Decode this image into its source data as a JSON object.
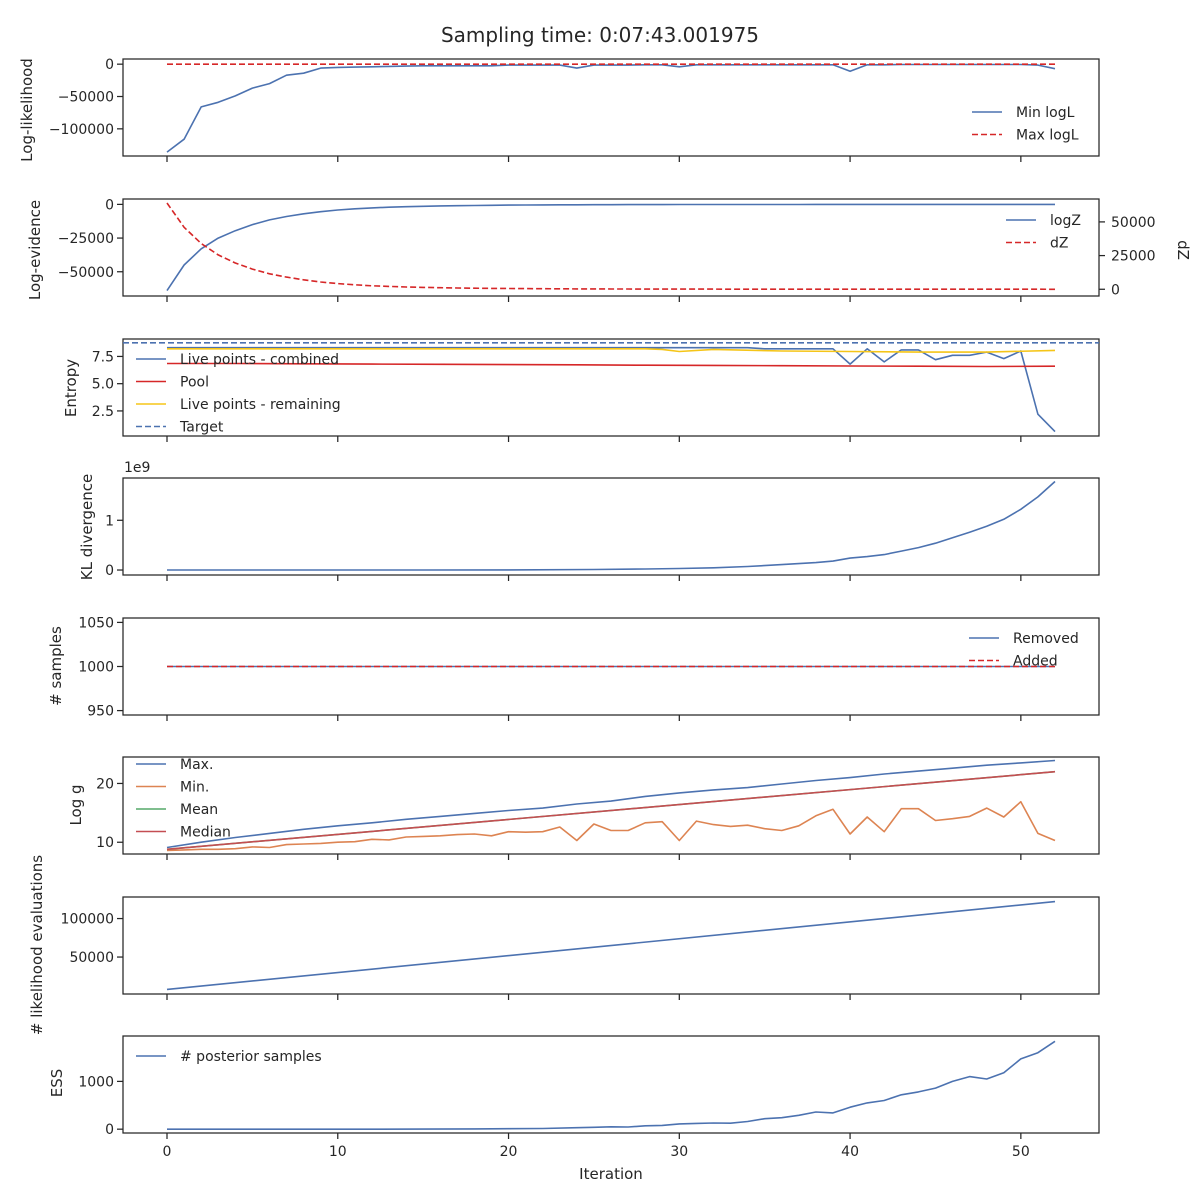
{
  "title": "Sampling time: 0:07:43.001975",
  "xlabel": "Iteration",
  "x_ticks": [
    "0",
    "10",
    "20",
    "30",
    "40",
    "50"
  ],
  "colors": {
    "blue": "#4c72b0",
    "orange": "#dd8452",
    "green": "#55a868",
    "red": "#c44e52",
    "dred": "#d62728",
    "yellow": "#f5c518"
  },
  "chart_data": [
    {
      "type": "line",
      "ylabel": "Log-likelihood",
      "ylim": [
        -142000,
        8000
      ],
      "yticks": [
        0,
        -50000,
        -100000
      ],
      "ytick_labels": [
        "0",
        "−50000",
        "−100000"
      ],
      "legend_position": "right",
      "series": [
        {
          "name": "Min logL",
          "style": "solid",
          "color": "blue",
          "x": [
            0,
            1,
            2,
            3,
            4,
            5,
            6,
            7,
            8,
            9,
            10,
            11,
            12,
            13,
            14,
            15,
            16,
            17,
            18,
            19,
            20,
            21,
            22,
            23,
            24,
            25,
            26,
            27,
            28,
            29,
            30,
            31,
            32,
            33,
            34,
            35,
            36,
            37,
            38,
            39,
            40,
            41,
            42,
            43,
            44,
            45,
            46,
            47,
            48,
            49,
            50,
            51,
            52
          ],
          "values": [
            -136000,
            -116000,
            -66000,
            -59000,
            -49000,
            -37000,
            -30000,
            -17000,
            -14000,
            -6000,
            -5000,
            -4500,
            -4000,
            -3500,
            -3000,
            -2500,
            -2500,
            -2500,
            -2500,
            -2500,
            -1500,
            -1500,
            -1500,
            -1500,
            -6000,
            -1500,
            -1500,
            -1500,
            -1000,
            -1000,
            -4000,
            -1000,
            -1000,
            -1000,
            -1000,
            -1000,
            -1000,
            -1000,
            -1000,
            -1000,
            -11000,
            -1000,
            -1000,
            -500,
            -500,
            -500,
            -500,
            -500,
            -500,
            -500,
            -500,
            -1500,
            -7000
          ]
        },
        {
          "name": "Max logL",
          "style": "dashed",
          "color": "dred",
          "x": [
            0,
            52
          ],
          "values": [
            0,
            0
          ]
        }
      ]
    },
    {
      "type": "line",
      "ylabel": "Log-evidence",
      "ylim": [
        -68000,
        4000
      ],
      "yticks": [
        0,
        -25000,
        -50000
      ],
      "ytick_labels": [
        "0",
        "−25000",
        "−50000"
      ],
      "secondary_axis": {
        "ylabel": "dZ",
        "ylim": [
          -5000,
          67000
        ],
        "yticks": [
          0,
          25000,
          50000
        ],
        "ytick_labels": [
          "0",
          "25000",
          "50000"
        ]
      },
      "legend_position": "right",
      "series": [
        {
          "name": "logZ",
          "style": "solid",
          "color": "blue",
          "x": [
            0,
            1,
            2,
            3,
            4,
            5,
            6,
            7,
            8,
            9,
            10,
            11,
            12,
            13,
            14,
            15,
            16,
            17,
            18,
            19,
            20,
            21,
            22,
            23,
            24,
            25,
            26,
            27,
            28,
            29,
            30,
            31,
            32,
            33,
            34,
            35,
            36,
            37,
            38,
            39,
            40,
            41,
            42,
            43,
            44,
            45,
            46,
            47,
            48,
            49,
            50,
            51,
            52
          ],
          "values": [
            -64000,
            -45000,
            -33000,
            -25000,
            -19500,
            -15000,
            -11500,
            -9000,
            -7000,
            -5400,
            -4200,
            -3300,
            -2600,
            -2100,
            -1700,
            -1400,
            -1150,
            -950,
            -800,
            -660,
            -550,
            -460,
            -390,
            -330,
            -280,
            -240,
            -200,
            -170,
            -150,
            -130,
            -110,
            -100,
            -90,
            -80,
            -70,
            -60,
            -55,
            -50,
            -45,
            -40,
            -35,
            -30,
            -28,
            -25,
            -22,
            -20,
            -18,
            -16,
            -15,
            -14,
            -13,
            -12,
            -10
          ]
        },
        {
          "name": "dZ",
          "style": "dashed",
          "color": "dred",
          "axis": "secondary",
          "x": [
            0,
            1,
            2,
            3,
            4,
            5,
            6,
            7,
            8,
            9,
            10,
            11,
            12,
            13,
            14,
            15,
            16,
            17,
            18,
            19,
            20,
            21,
            22,
            23,
            24,
            25,
            26,
            27,
            28,
            29,
            30,
            31,
            32,
            33,
            34,
            35,
            36,
            37,
            38,
            39,
            40,
            41,
            42,
            43,
            44,
            45,
            46,
            47,
            48,
            49,
            50,
            51,
            52
          ],
          "values": [
            64000,
            46000,
            34000,
            25500,
            19500,
            15000,
            11500,
            9000,
            7000,
            5400,
            4200,
            3300,
            2600,
            2100,
            1700,
            1400,
            1150,
            950,
            800,
            660,
            550,
            460,
            390,
            330,
            280,
            240,
            200,
            170,
            150,
            130,
            110,
            100,
            90,
            80,
            70,
            60,
            55,
            50,
            45,
            40,
            35,
            30,
            28,
            25,
            22,
            20,
            18,
            16,
            15,
            14,
            13,
            12,
            10
          ]
        }
      ]
    },
    {
      "type": "line",
      "ylabel": "Entropy",
      "ylim": [
        0.2,
        9.1
      ],
      "yticks": [
        2.5,
        5.0,
        7.5
      ],
      "ytick_labels": [
        "2.5",
        "5.0",
        "7.5"
      ],
      "legend_position": "upper-left",
      "series": [
        {
          "name": "Live points - combined",
          "style": "solid",
          "color": "blue",
          "x": [
            0,
            1,
            2,
            3,
            4,
            5,
            6,
            7,
            8,
            9,
            10,
            11,
            12,
            13,
            14,
            15,
            16,
            17,
            18,
            19,
            20,
            21,
            22,
            23,
            24,
            25,
            26,
            27,
            28,
            29,
            30,
            31,
            32,
            33,
            34,
            35,
            36,
            37,
            38,
            39,
            40,
            41,
            42,
            43,
            44,
            45,
            46,
            47,
            48,
            49,
            50,
            51,
            52
          ],
          "values": [
            8.3,
            8.3,
            8.3,
            8.3,
            8.3,
            8.3,
            8.3,
            8.3,
            8.3,
            8.3,
            8.3,
            8.3,
            8.3,
            8.3,
            8.3,
            8.3,
            8.3,
            8.3,
            8.3,
            8.3,
            8.3,
            8.3,
            8.3,
            8.3,
            8.3,
            8.3,
            8.3,
            8.3,
            8.3,
            8.3,
            8.3,
            8.3,
            8.3,
            8.3,
            8.3,
            8.2,
            8.2,
            8.2,
            8.2,
            8.2,
            6.8,
            8.2,
            7.0,
            8.1,
            8.1,
            7.2,
            7.6,
            7.6,
            7.9,
            7.3,
            8.0,
            2.2,
            0.6
          ]
        },
        {
          "name": "Pool",
          "style": "solid",
          "color": "dred",
          "x": [
            0,
            4,
            8,
            12,
            16,
            20,
            24,
            28,
            32,
            36,
            40,
            44,
            48,
            52
          ],
          "values": [
            6.85,
            6.85,
            6.82,
            6.8,
            6.78,
            6.75,
            6.73,
            6.7,
            6.68,
            6.65,
            6.62,
            6.6,
            6.58,
            6.6
          ]
        },
        {
          "name": "Live points - remaining",
          "style": "solid",
          "color": "yellow",
          "x": [
            0,
            4,
            8,
            12,
            16,
            20,
            24,
            28,
            29,
            30,
            32,
            36,
            40,
            44,
            48,
            52
          ],
          "values": [
            8.2,
            8.2,
            8.2,
            8.2,
            8.2,
            8.2,
            8.2,
            8.2,
            8.15,
            7.95,
            8.15,
            8.0,
            7.95,
            7.9,
            7.9,
            8.05
          ]
        },
        {
          "name": "Target",
          "style": "dashed",
          "color": "blue",
          "x": [
            0,
            52
          ],
          "values": [
            8.75,
            8.75
          ]
        }
      ]
    },
    {
      "type": "line",
      "ylabel": "KL divergence",
      "offset_label": "1e9",
      "ylim": [
        -0.1,
        1.85
      ],
      "yticks": [
        0,
        1
      ],
      "ytick_labels": [
        "0",
        "1"
      ],
      "series": [
        {
          "name": "KL divergence",
          "style": "solid",
          "color": "blue",
          "x": [
            0,
            5,
            10,
            15,
            20,
            25,
            28,
            30,
            32,
            34,
            36,
            38,
            39,
            40,
            41,
            42,
            43,
            44,
            45,
            46,
            47,
            48,
            49,
            50,
            51,
            52
          ],
          "values": [
            0,
            0,
            0,
            0,
            0.002,
            0.01,
            0.02,
            0.03,
            0.045,
            0.07,
            0.11,
            0.15,
            0.18,
            0.24,
            0.27,
            0.31,
            0.38,
            0.45,
            0.54,
            0.65,
            0.76,
            0.88,
            1.02,
            1.22,
            1.47,
            1.78
          ]
        }
      ]
    },
    {
      "type": "line",
      "ylabel": "# samples",
      "ylim": [
        945,
        1055
      ],
      "yticks": [
        950,
        1000,
        1050
      ],
      "ytick_labels": [
        "950",
        "1000",
        "1050"
      ],
      "legend_position": "upper-right",
      "series": [
        {
          "name": "Removed",
          "style": "solid",
          "color": "blue",
          "x": [
            0,
            52
          ],
          "values": [
            1000,
            1000
          ]
        },
        {
          "name": "Added",
          "style": "dashed",
          "color": "dred",
          "x": [
            0,
            52
          ],
          "values": [
            1000,
            1000
          ]
        }
      ]
    },
    {
      "type": "line",
      "ylabel": "Log g",
      "ylim": [
        8,
        24.5
      ],
      "yticks": [
        10,
        20
      ],
      "ytick_labels": [
        "10",
        "20"
      ],
      "legend_position": "upper-left",
      "series": [
        {
          "name": "Max.",
          "style": "solid",
          "color": "blue",
          "x": [
            0,
            2,
            4,
            6,
            8,
            10,
            12,
            14,
            16,
            18,
            20,
            22,
            24,
            26,
            28,
            30,
            32,
            34,
            36,
            38,
            40,
            42,
            44,
            46,
            48,
            50,
            52
          ],
          "values": [
            9.1,
            10.0,
            10.8,
            11.5,
            12.2,
            12.8,
            13.3,
            13.9,
            14.4,
            14.9,
            15.4,
            15.8,
            16.5,
            17.0,
            17.8,
            18.4,
            18.9,
            19.3,
            19.9,
            20.5,
            21.0,
            21.6,
            22.1,
            22.6,
            23.1,
            23.5,
            23.9
          ]
        },
        {
          "name": "Min.",
          "style": "solid",
          "color": "orange",
          "x": [
            0,
            1,
            2,
            3,
            4,
            5,
            6,
            7,
            8,
            9,
            10,
            11,
            12,
            13,
            14,
            15,
            16,
            17,
            18,
            19,
            20,
            21,
            22,
            23,
            24,
            25,
            26,
            27,
            28,
            29,
            30,
            31,
            32,
            33,
            34,
            35,
            36,
            37,
            38,
            39,
            40,
            41,
            42,
            43,
            44,
            45,
            46,
            47,
            48,
            49,
            50,
            51,
            52
          ],
          "values": [
            8.6,
            8.7,
            8.8,
            8.8,
            8.9,
            9.2,
            9.1,
            9.6,
            9.7,
            9.8,
            10.0,
            10.1,
            10.5,
            10.4,
            10.9,
            11.0,
            11.1,
            11.3,
            11.4,
            11.1,
            11.8,
            11.7,
            11.8,
            12.6,
            10.3,
            13.1,
            12.0,
            12.0,
            13.3,
            13.5,
            10.3,
            13.6,
            13.0,
            12.7,
            12.9,
            12.3,
            12.0,
            12.8,
            14.5,
            15.6,
            11.4,
            14.3,
            11.8,
            15.7,
            15.7,
            13.7,
            14.0,
            14.4,
            15.8,
            14.3,
            16.9,
            11.5,
            10.3
          ]
        },
        {
          "name": "Mean",
          "style": "solid",
          "color": "green",
          "x": [
            0,
            52
          ],
          "values": [
            8.8,
            22.0
          ]
        },
        {
          "name": "Median",
          "style": "solid",
          "color": "red",
          "x": [
            0,
            52
          ],
          "values": [
            8.8,
            22.0
          ]
        }
      ]
    },
    {
      "type": "line",
      "ylabel": "# likelihood evaluations",
      "ylim": [
        2000,
        128000
      ],
      "yticks": [
        50000,
        100000
      ],
      "ytick_labels": [
        "50000",
        "100000"
      ],
      "series": [
        {
          "name": "# likelihood evaluations",
          "style": "solid",
          "color": "blue",
          "x": [
            0,
            52
          ],
          "values": [
            8000,
            122000
          ]
        }
      ]
    },
    {
      "type": "line",
      "ylabel": "ESS",
      "ylim": [
        -80,
        1950
      ],
      "yticks": [
        0,
        1000
      ],
      "ytick_labels": [
        "0",
        "1000"
      ],
      "legend_position": "upper-left",
      "series": [
        {
          "name": "# posterior samples",
          "style": "solid",
          "color": "blue",
          "x": [
            0,
            5,
            10,
            15,
            18,
            20,
            22,
            24,
            25,
            26,
            27,
            28,
            29,
            30,
            31,
            32,
            33,
            34,
            35,
            36,
            37,
            38,
            39,
            40,
            41,
            42,
            43,
            44,
            45,
            46,
            47,
            48,
            49,
            50,
            51,
            52
          ],
          "values": [
            0,
            0,
            0,
            2,
            5,
            10,
            15,
            30,
            40,
            50,
            45,
            70,
            80,
            110,
            120,
            130,
            125,
            160,
            220,
            240,
            290,
            360,
            340,
            460,
            550,
            600,
            720,
            780,
            860,
            1000,
            1100,
            1050,
            1180,
            1470,
            1600,
            1840
          ]
        }
      ]
    }
  ]
}
